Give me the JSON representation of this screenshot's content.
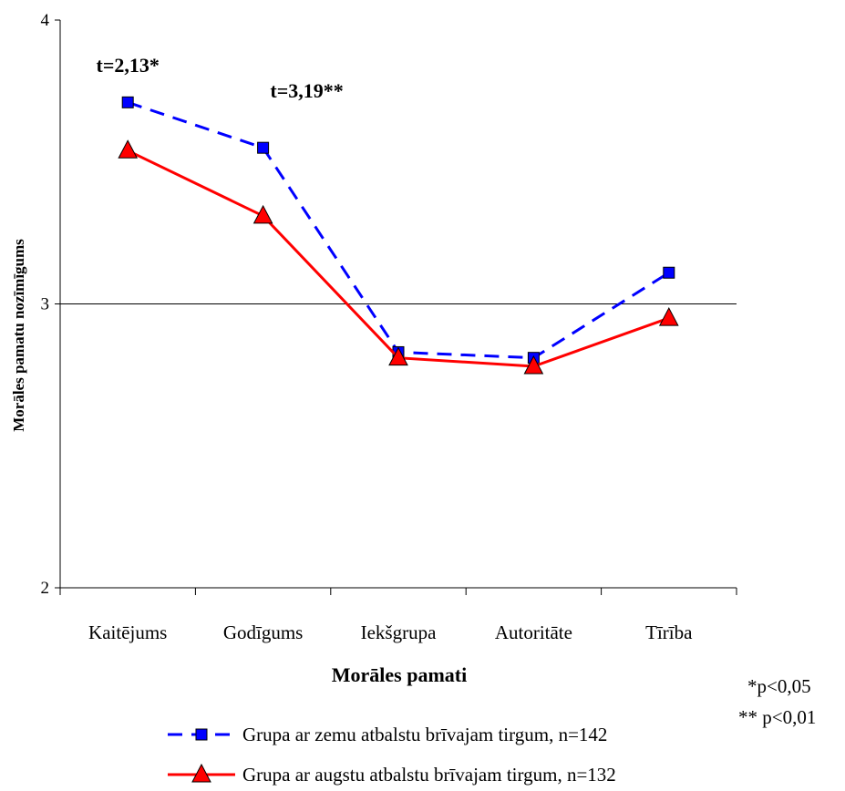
{
  "chart_data": {
    "type": "line",
    "xlabel": "Morāles pamati",
    "ylabel": "Morāles pamatu nozīmīgums",
    "categories": [
      "Kaitējums",
      "Godīgums",
      "Iekšgrupa",
      "Autoritāte",
      "Tīrība"
    ],
    "ylim": [
      2,
      4
    ],
    "yticks": [
      "2",
      "3",
      "4"
    ],
    "reference_line": 3,
    "series": [
      {
        "name": "Grupa ar zemu atbalstu brīvajam tirgum, n=142",
        "color": "#0000ff",
        "marker": "square",
        "dash": "dashed",
        "values": [
          3.71,
          3.55,
          2.83,
          2.81,
          3.11
        ]
      },
      {
        "name": "Grupa ar augstu atbalstu brīvajam tirgum,  n=132",
        "color": "#ff0000",
        "marker": "triangle",
        "dash": "solid",
        "values": [
          3.54,
          3.31,
          2.81,
          2.78,
          2.95
        ]
      }
    ],
    "annotations": [
      {
        "text": "t=2,13*",
        "category_index": 0
      },
      {
        "text": "t=3,19**",
        "category_index": 1
      }
    ],
    "notes": [
      "*p<0,05",
      "** p<0,01"
    ],
    "legend_position": "bottom"
  }
}
